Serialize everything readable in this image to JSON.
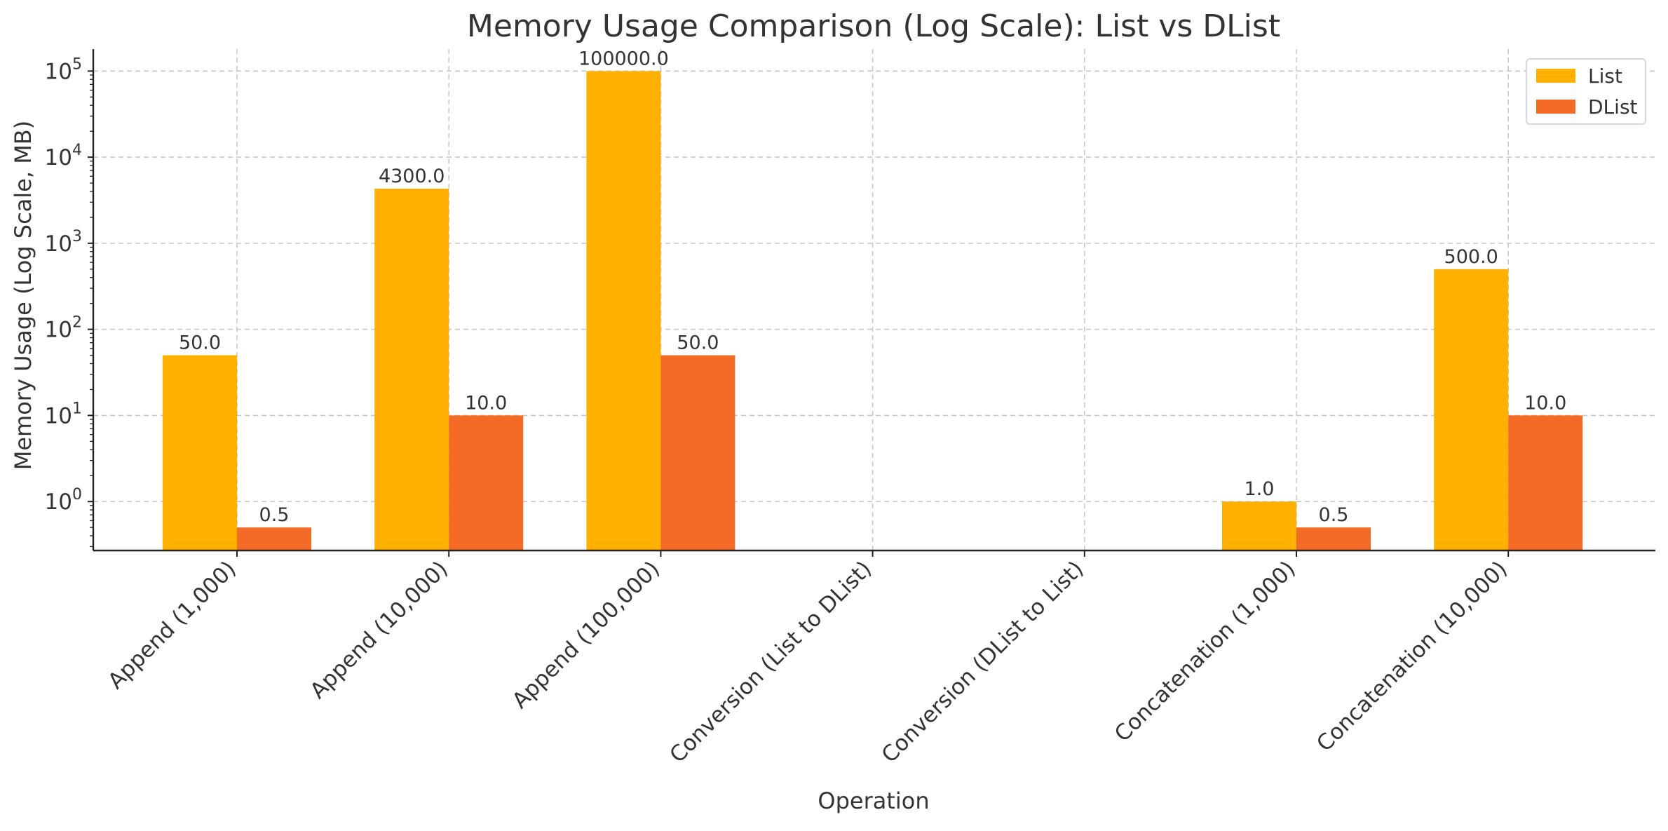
{
  "chart_data": {
    "type": "bar",
    "title": "Memory Usage Comparison (Log Scale): List vs DList",
    "xlabel": "Operation",
    "ylabel": "Memory Usage (Log Scale, MB)",
    "yscale": "log",
    "ylim": [
      0.27,
      180000
    ],
    "grid": true,
    "legend_position": "top-right",
    "categories": [
      "Append (1,000)",
      "Append (10,000)",
      "Append (100,000)",
      "Conversion (List to DList)",
      "Conversion (DList to List)",
      "Concatenation (1,000)",
      "Concatenation (10,000)"
    ],
    "yticks": [
      {
        "base": "10",
        "exp": "0",
        "value": 1
      },
      {
        "base": "10",
        "exp": "1",
        "value": 10
      },
      {
        "base": "10",
        "exp": "2",
        "value": 100
      },
      {
        "base": "10",
        "exp": "3",
        "value": 1000
      },
      {
        "base": "10",
        "exp": "4",
        "value": 10000
      },
      {
        "base": "10",
        "exp": "5",
        "value": 100000
      }
    ],
    "series": [
      {
        "name": "List",
        "color": "#FFB000",
        "values": [
          50.0,
          4300.0,
          100000.0,
          null,
          null,
          1.0,
          500.0
        ],
        "labels": [
          "50.0",
          "4300.0",
          "100000.0",
          "",
          "",
          "1.0",
          "500.0"
        ]
      },
      {
        "name": "DList",
        "color": "#F36B26",
        "values": [
          0.5,
          10.0,
          50.0,
          null,
          null,
          0.5,
          10.0
        ],
        "labels": [
          "0.5",
          "10.0",
          "50.0",
          "",
          "",
          "0.5",
          "10.0"
        ]
      }
    ]
  }
}
